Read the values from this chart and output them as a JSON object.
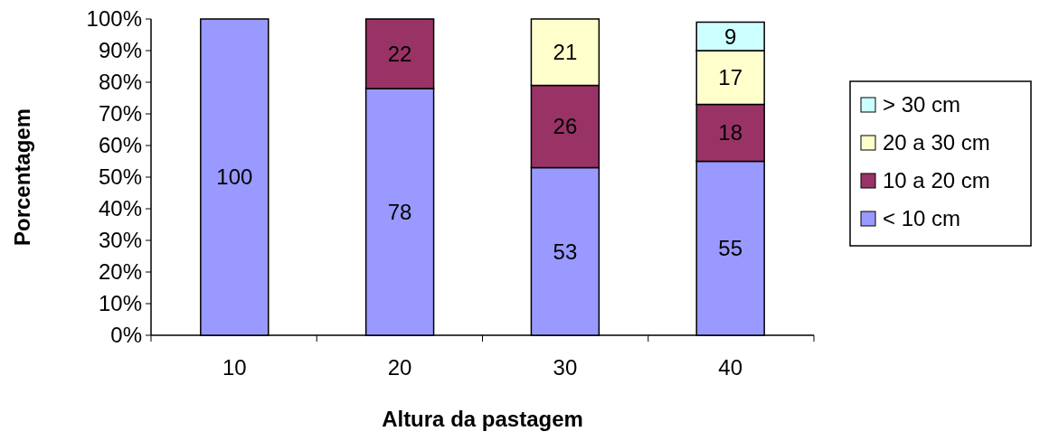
{
  "chart_data": {
    "type": "bar",
    "stacked": true,
    "xlabel": "Altura da pastagem",
    "ylabel": "Porcentagem",
    "categories": [
      "10",
      "20",
      "30",
      "40"
    ],
    "series": [
      {
        "name": "< 10 cm",
        "color": "#9999ff",
        "values": [
          100,
          78,
          53,
          55
        ]
      },
      {
        "name": "10 a 20 cm",
        "color": "#993366",
        "values": [
          null,
          22,
          26,
          18
        ]
      },
      {
        "name": "20 a 30 cm",
        "color": "#ffffcc",
        "values": [
          null,
          null,
          21,
          17
        ]
      },
      {
        "name": "> 30 cm",
        "color": "#ccffff",
        "values": [
          null,
          null,
          null,
          9
        ]
      }
    ],
    "ylim": [
      0,
      100
    ],
    "yticks": [
      {
        "value": 0,
        "label": "0%"
      },
      {
        "value": 10,
        "label": "10%"
      },
      {
        "value": 20,
        "label": "20%"
      },
      {
        "value": 30,
        "label": "30%"
      },
      {
        "value": 40,
        "label": "40%"
      },
      {
        "value": 50,
        "label": "50%"
      },
      {
        "value": 60,
        "label": "60%"
      },
      {
        "value": 70,
        "label": "70%"
      },
      {
        "value": 80,
        "label": "80%"
      },
      {
        "value": 90,
        "label": "90%"
      },
      {
        "value": 100,
        "label": "100%"
      }
    ],
    "data_labels": true,
    "legend": "right",
    "grid": false
  }
}
